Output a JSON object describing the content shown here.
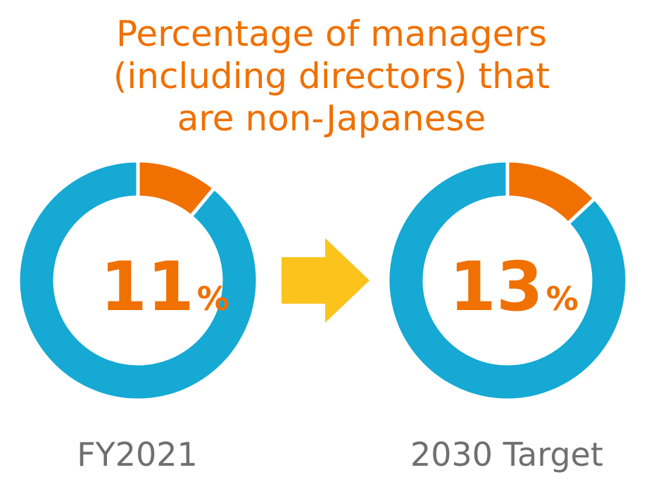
{
  "chart_data": {
    "type": "donut",
    "title_lines": [
      "Percentage of managers",
      "(including directors) that",
      "are non-Japanese"
    ],
    "charts": [
      {
        "label": "FY2021",
        "value": 11,
        "value_text": "11",
        "unit": "%"
      },
      {
        "label": "2030 Target",
        "value": 13,
        "value_text": "13",
        "unit": "%"
      }
    ],
    "legend": "none",
    "grid": false
  },
  "colors": {
    "highlight": "#f07000",
    "remainder": "#15a9d4",
    "arrow": "#fcc31c",
    "label": "#6f6f6f"
  },
  "icons": {
    "between_charts": "right-arrow-icon"
  }
}
